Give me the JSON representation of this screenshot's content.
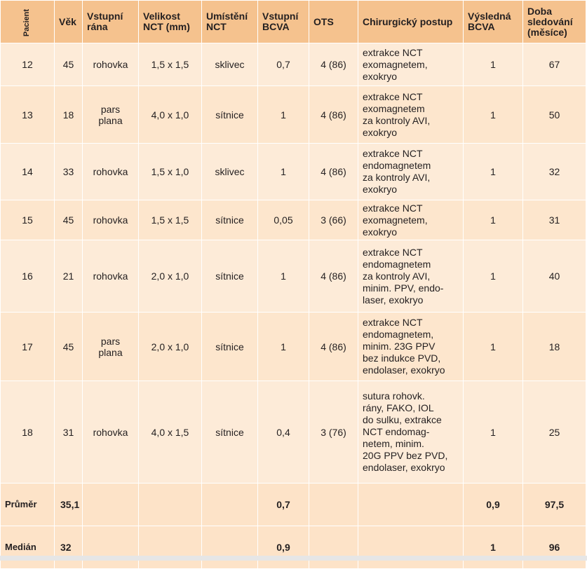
{
  "headers": {
    "patient": "Pacient",
    "age": "Věk",
    "entry": "Vstupní rána",
    "size": "Velikost NCT (mm)",
    "location": "Umístění NCT",
    "bcva_in": "Vstupní BCVA",
    "ots": "OTS",
    "procedure": "Chirurgický postup",
    "bcva_out": "Výsledná BCVA",
    "followup": "Doba sledování (měsíce)"
  },
  "rows": [
    {
      "patient": "12",
      "age": "45",
      "entry": "rohovka",
      "size": "1,5 x 1,5",
      "location": "sklivec",
      "bcva_in": "0,7",
      "ots": "4 (86)",
      "procedure": [
        "extrakce NCT",
        "exomagnetem,",
        "exokryo"
      ],
      "bcva_out": "1",
      "followup": "67"
    },
    {
      "patient": "13",
      "age": "18",
      "entry": "pars plana",
      "size": "4,0 x 1,0",
      "location": "sítnice",
      "bcva_in": "1",
      "ots": "4 (86)",
      "procedure": [
        "extrakce NCT",
        "exomagnetem",
        "za kontroly AVI,",
        "exokryo"
      ],
      "bcva_out": "1",
      "followup": "50"
    },
    {
      "patient": "14",
      "age": "33",
      "entry": "rohovka",
      "size": "1,5 x 1,0",
      "location": "sklivec",
      "bcva_in": "1",
      "ots": "4 (86)",
      "procedure": [
        "extrakce NCT",
        "endomagnetem",
        "za kontroly AVI,",
        "exokryo"
      ],
      "bcva_out": "1",
      "followup": "32"
    },
    {
      "patient": "15",
      "age": "45",
      "entry": "rohovka",
      "size": "1,5 x 1,5",
      "location": "sítnice",
      "bcva_in": "0,05",
      "ots": "3 (66)",
      "procedure": [
        "extrakce NCT",
        "exomagnetem,",
        "exokryo"
      ],
      "bcva_out": "1",
      "followup": "31"
    },
    {
      "patient": "16",
      "age": "21",
      "entry": "rohovka",
      "size": "2,0 x 1,0",
      "location": "sítnice",
      "bcva_in": "1",
      "ots": "4 (86)",
      "procedure": [
        "extrakce NCT",
        "endomagnetem",
        "za kontroly AVI,",
        "minim. PPV, endo-",
        "laser, exokryo"
      ],
      "bcva_out": "1",
      "followup": "40"
    },
    {
      "patient": "17",
      "age": "45",
      "entry": "pars plana",
      "size": "2,0 x 1,0",
      "location": "sítnice",
      "bcva_in": "1",
      "ots": "4 (86)",
      "procedure": [
        "extrakce NCT",
        "endomagnetem,",
        "minim. 23G PPV",
        "bez indukce PVD,",
        "endolaser, exokryo"
      ],
      "bcva_out": "1",
      "followup": "18"
    },
    {
      "patient": "18",
      "age": "31",
      "entry": "rohovka",
      "size": "4,0 x 1,5",
      "location": "sítnice",
      "bcva_in": "0,4",
      "ots": "3 (76)",
      "procedure": [
        "sutura rohovk.",
        "rány, FAKO,  IOL",
        "do sulku,  extrakce",
        "NCT endomag-",
        "netem, minim.",
        "20G PPV bez PVD,",
        "endolaser, exokryo"
      ],
      "bcva_out": "1",
      "followup": "25"
    }
  ],
  "summary": [
    {
      "label": "Průměr",
      "age": "35,1",
      "bcva_in": "0,7",
      "bcva_out": "0,9",
      "followup": "97,5"
    },
    {
      "label": "Medián",
      "age": "32",
      "bcva_in": "0,9",
      "bcva_out": "1",
      "followup": "96"
    }
  ],
  "colors": {
    "header_bg": "#f5c28e",
    "row_bg": "#fde6cd",
    "summary_bg": "#fde3c8"
  }
}
